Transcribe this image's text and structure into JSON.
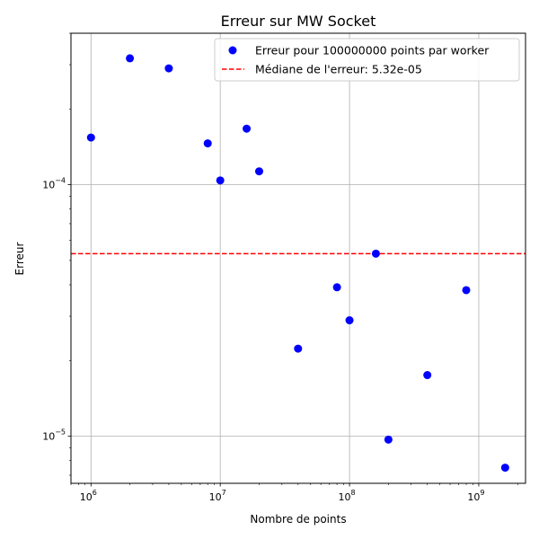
{
  "chart_data": {
    "type": "scatter",
    "title": "Erreur sur MW Socket",
    "xlabel": "Nombre de points",
    "ylabel": "Erreur",
    "xscale": "log",
    "yscale": "log",
    "xlim": [
      700000,
      2300000000
    ],
    "ylim": [
      6.5e-06,
      0.0004
    ],
    "grid": true,
    "legend_position": "top-right",
    "x_ticks": [
      {
        "base": "10",
        "exp": "6",
        "value": 1000000
      },
      {
        "base": "10",
        "exp": "7",
        "value": 10000000
      },
      {
        "base": "10",
        "exp": "8",
        "value": 100000000
      },
      {
        "base": "10",
        "exp": "9",
        "value": 1000000000
      }
    ],
    "y_ticks": [
      {
        "base": "10",
        "exp": "−5",
        "value": 1e-05
      },
      {
        "base": "10",
        "exp": "−4",
        "value": 0.0001
      }
    ],
    "series": [
      {
        "name": "Erreur pour 100000000 points par worker",
        "kind": "scatter",
        "color": "#0000ff",
        "x": [
          1000000,
          2000000,
          4000000,
          8000000,
          10000000,
          16000000,
          20000000,
          40000000,
          80000000,
          100000000,
          160000000,
          200000000,
          400000000,
          800000000,
          1600000000
        ],
        "y": [
          0.000154,
          0.000318,
          0.00029,
          0.000146,
          0.000104,
          0.000167,
          0.000113,
          2.23e-05,
          3.91e-05,
          2.89e-05,
          5.32e-05,
          9.7e-06,
          1.75e-05,
          3.81e-05,
          7.5e-06
        ]
      },
      {
        "name": "Médiane de l'erreur: 5.32e-05",
        "kind": "hline",
        "color": "#ff0000",
        "y": 5.32e-05
      }
    ]
  }
}
